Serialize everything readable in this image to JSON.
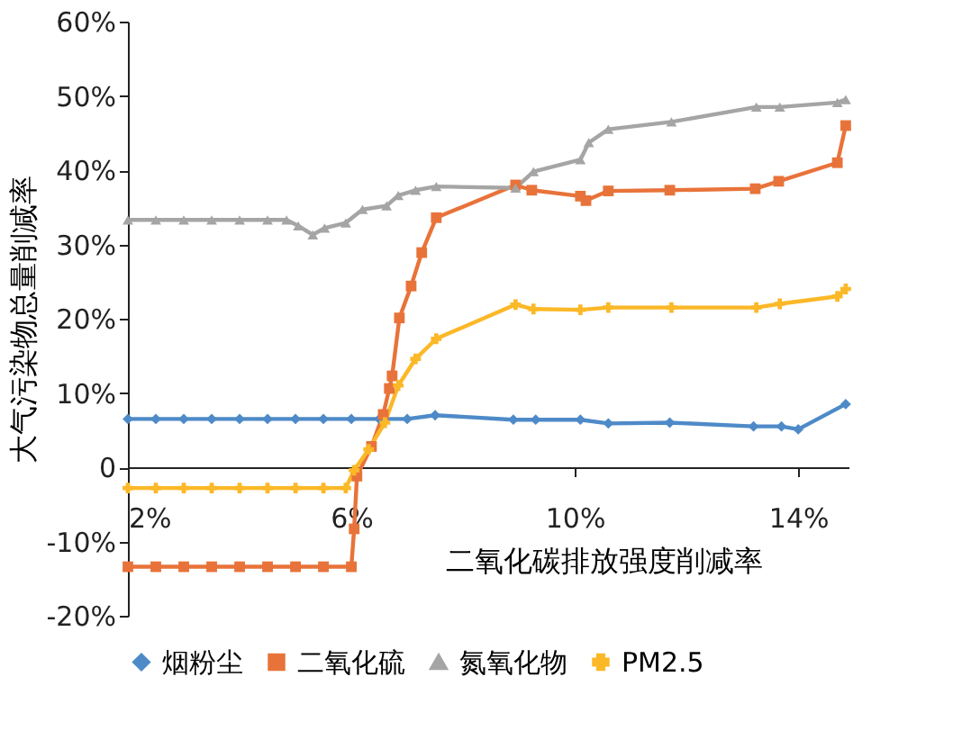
{
  "chart_data": {
    "type": "line",
    "xlabel": "二氧化碳排放强度削减率",
    "ylabel": "大气污染物总量削减率",
    "xlim": [
      2,
      14.9
    ],
    "ylim": [
      -20,
      60
    ],
    "xticks": [
      {
        "value": 2,
        "label": "2%"
      },
      {
        "value": 6,
        "label": "6%"
      },
      {
        "value": 10,
        "label": "10%"
      },
      {
        "value": 14,
        "label": "14%"
      }
    ],
    "yticks": [
      {
        "value": -20,
        "label": "-20%"
      },
      {
        "value": -10,
        "label": "-10%"
      },
      0,
      {
        "value": 10,
        "label": "10%"
      },
      {
        "value": 20,
        "label": "20%"
      },
      {
        "value": 30,
        "label": "30%"
      },
      {
        "value": 40,
        "label": "40%"
      },
      {
        "value": 50,
        "label": "50%"
      },
      {
        "value": 60,
        "label": "60%"
      }
    ],
    "grid": false,
    "legend": "bottom",
    "line_style": "solid",
    "series": [
      {
        "name": "烟粉尘",
        "color": "#4e8ac8",
        "marker": "diamond",
        "x": [
          2.0,
          2.5,
          3.0,
          3.5,
          4.0,
          4.5,
          5.0,
          5.5,
          6.0,
          6.5,
          7.0,
          7.5,
          8.9,
          9.3,
          10.1,
          10.6,
          11.7,
          13.2,
          13.7,
          14.0,
          14.85
        ],
        "values": [
          6.5,
          6.5,
          6.5,
          6.5,
          6.5,
          6.5,
          6.5,
          6.5,
          6.5,
          6.5,
          6.5,
          7.0,
          6.4,
          6.4,
          6.4,
          5.9,
          6.0,
          5.5,
          5.5,
          5.1,
          8.5
        ]
      },
      {
        "name": "二氧化硫",
        "color": "#e8733a",
        "marker": "square",
        "x": [
          2.0,
          2.5,
          3.0,
          3.5,
          4.0,
          4.5,
          5.0,
          5.5,
          6.0,
          6.05,
          6.1,
          6.36,
          6.57,
          6.68,
          6.73,
          6.86,
          7.07,
          7.26,
          7.52,
          8.94,
          9.23,
          10.1,
          10.2,
          10.6,
          11.7,
          13.23,
          13.65,
          14.7,
          14.85
        ],
        "values": [
          -13.4,
          -13.4,
          -13.4,
          -13.4,
          -13.4,
          -13.4,
          -13.4,
          -13.4,
          -13.4,
          -8.3,
          -1.2,
          2.8,
          7.1,
          10.6,
          12.3,
          20.1,
          24.4,
          28.9,
          33.6,
          38.0,
          37.3,
          36.5,
          35.9,
          37.2,
          37.3,
          37.5,
          38.5,
          41.0,
          46.0
        ]
      },
      {
        "name": "氮氧化物",
        "color": "#a5a5a5",
        "marker": "triangle",
        "x": [
          2.0,
          2.5,
          3.0,
          3.5,
          4.0,
          4.5,
          4.84,
          5.05,
          5.31,
          5.52,
          5.9,
          6.2,
          6.63,
          6.84,
          7.15,
          7.52,
          8.94,
          9.26,
          10.1,
          10.25,
          10.6,
          11.73,
          13.25,
          13.67,
          14.7,
          14.85
        ],
        "values": [
          33.3,
          33.3,
          33.3,
          33.3,
          33.3,
          33.3,
          33.3,
          32.5,
          31.3,
          32.2,
          32.9,
          34.7,
          35.2,
          36.6,
          37.3,
          37.8,
          37.6,
          39.8,
          41.4,
          43.7,
          45.5,
          46.5,
          48.5,
          48.5,
          49.1,
          49.5
        ]
      },
      {
        "name": "PM2.5",
        "color": "#fbb827",
        "marker": "cross",
        "x": [
          2.0,
          2.5,
          3.0,
          3.5,
          4.0,
          4.5,
          5.0,
          5.5,
          5.9,
          6.05,
          6.31,
          6.6,
          6.84,
          7.15,
          7.52,
          8.94,
          9.26,
          10.1,
          10.6,
          11.73,
          13.25,
          13.67,
          14.7,
          14.85
        ],
        "values": [
          -2.8,
          -2.8,
          -2.8,
          -2.8,
          -2.8,
          -2.8,
          -2.8,
          -2.8,
          -2.8,
          -0.4,
          2.4,
          6.0,
          11.0,
          14.6,
          17.3,
          21.9,
          21.3,
          21.2,
          21.5,
          21.5,
          21.5,
          22.0,
          23.0,
          24.0
        ]
      }
    ]
  }
}
